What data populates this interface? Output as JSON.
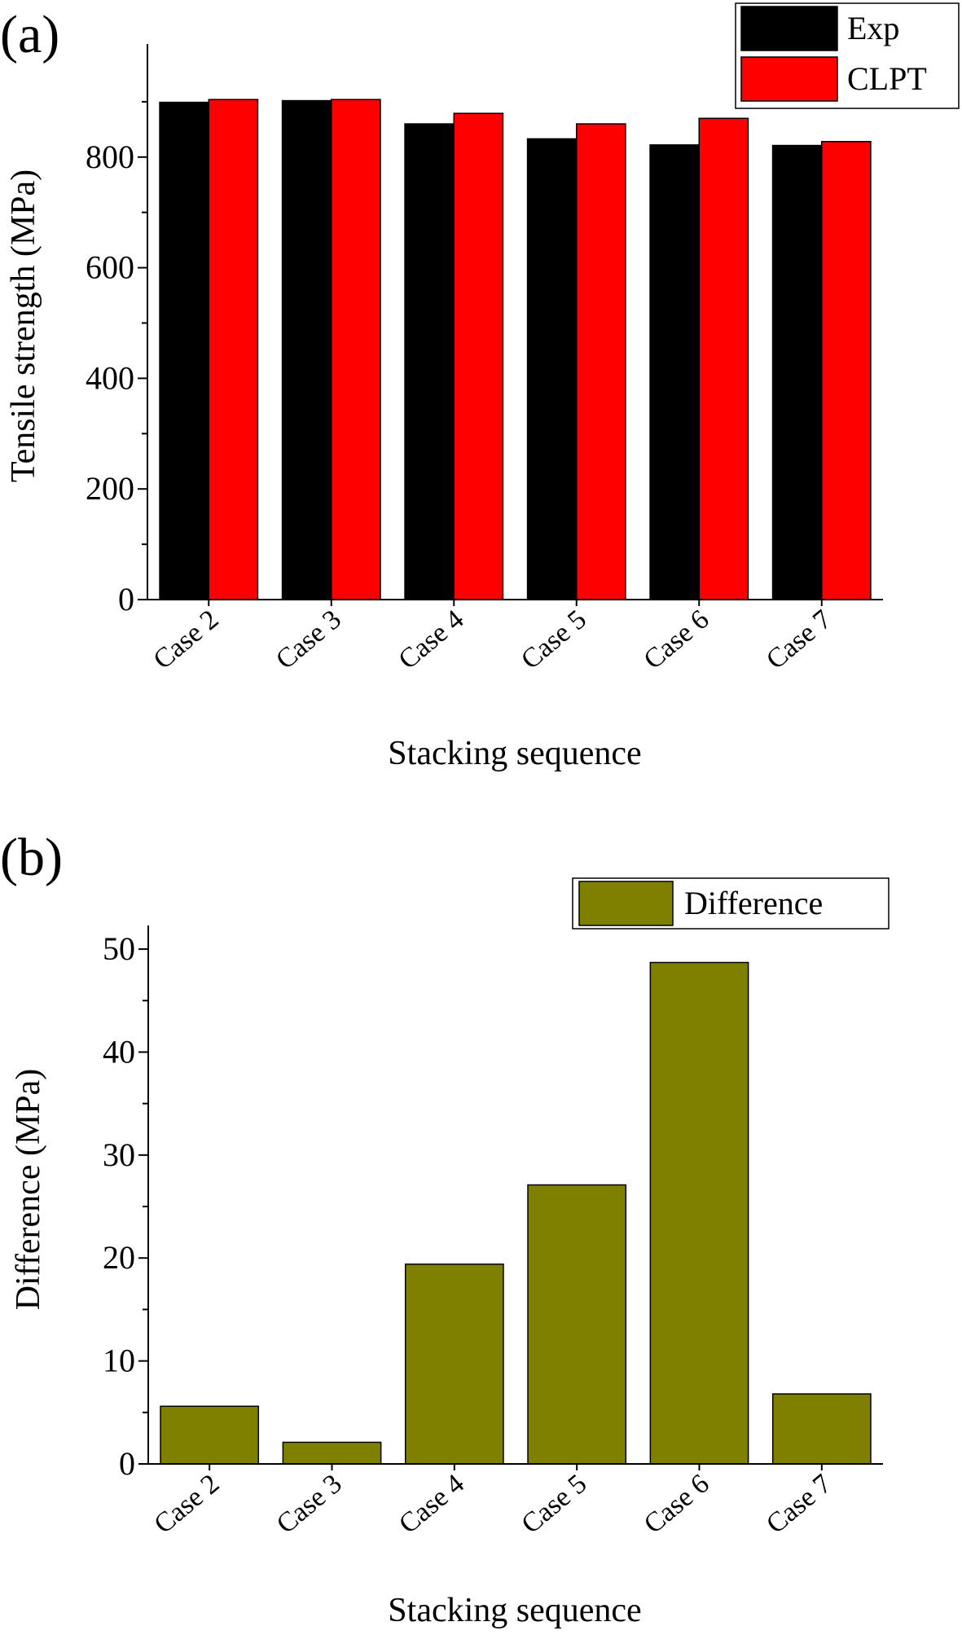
{
  "chart_data": [
    {
      "type": "bar",
      "panel_label": "(a)",
      "title": "",
      "xlabel": "Stacking sequence",
      "ylabel": "Tensile strength (MPa)",
      "categories": [
        "Case 2",
        "Case 3",
        "Case 4",
        "Case 5",
        "Case 6",
        "Case 7"
      ],
      "series": [
        {
          "name": "Exp",
          "color": "#000000",
          "values": [
            899,
            902,
            860,
            833,
            822,
            821
          ]
        },
        {
          "name": "CLPT",
          "color": "#ff0000",
          "values": [
            904,
            904,
            879,
            860,
            870,
            828
          ]
        }
      ],
      "ylim": [
        0,
        1000
      ],
      "yticks": [
        0,
        200,
        400,
        600,
        800
      ],
      "yticks_minor": [
        100,
        300,
        500,
        700,
        900
      ],
      "grid": false,
      "legend": "top-right"
    },
    {
      "type": "bar",
      "panel_label": "(b)",
      "title": "",
      "xlabel": "Stacking sequence",
      "ylabel": "Difference (MPa)",
      "categories": [
        "Case 2",
        "Case 3",
        "Case 4",
        "Case 5",
        "Case 6",
        "Case 7"
      ],
      "series": [
        {
          "name": "Difference",
          "color": "#808000",
          "values": [
            5.6,
            2.1,
            19.4,
            27.1,
            48.7,
            6.8
          ]
        }
      ],
      "ylim": [
        0,
        52.3
      ],
      "yticks": [
        0,
        10,
        20,
        30,
        40,
        50
      ],
      "yticks_minor": [
        5,
        15,
        25,
        35,
        45
      ],
      "grid": false,
      "legend": "top-right"
    }
  ]
}
